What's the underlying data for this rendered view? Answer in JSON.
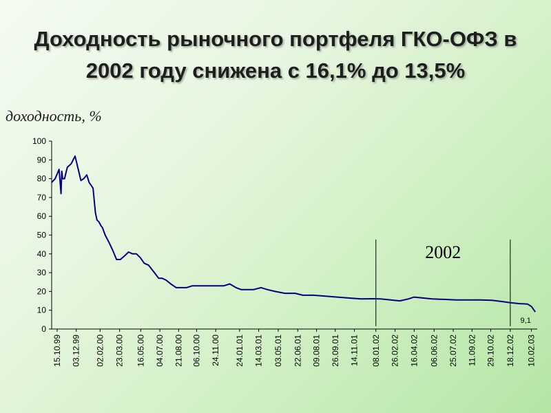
{
  "chart_data": {
    "type": "line",
    "title": "Доходность рыночного портфеля ГКО-ОФЗ в 2002 году снижена с 16,1% до 13,5%",
    "ylabel": "доходность, %",
    "xlabel": "",
    "ylim": [
      0,
      100
    ],
    "yticks": [
      "0",
      "10",
      "20",
      "30",
      "40",
      "50",
      "60",
      "70",
      "80",
      "90",
      "100"
    ],
    "xticks": [
      "15.10.99",
      "03.12.99",
      "02.02.00",
      "23.03.00",
      "16.05.00",
      "04.07.00",
      "21.08.00",
      "06.10.00",
      "24.11.00",
      "24.01.01",
      "14.03.01",
      "03.05.01",
      "22.06.01",
      "09.08.01",
      "26.09.01",
      "14.11.01",
      "08.01.02",
      "26.02.02",
      "16.04.02",
      "06.06.02",
      "25.07.02",
      "11.09.02",
      "29.10.02",
      "18.12.02",
      "10.02.03"
    ],
    "grid": false,
    "legend": "none",
    "line_color": "#000080",
    "series": [
      {
        "x": [
          "1999-10-01",
          "1999-10-10",
          "1999-10-20",
          "1999-10-25",
          "1999-10-27",
          "1999-10-29",
          "1999-11-03",
          "1999-11-10",
          "1999-11-20",
          "1999-11-30",
          "1999-12-08",
          "1999-12-15",
          "1999-12-22",
          "1999-12-30",
          "2000-01-05",
          "2000-01-15",
          "2000-01-21",
          "2000-01-25",
          "2000-01-30",
          "2000-02-04",
          "2000-02-08",
          "2000-02-15",
          "2000-02-25",
          "2000-03-05",
          "2000-03-15",
          "2000-03-25",
          "2000-04-05",
          "2000-04-15",
          "2000-04-25",
          "2000-05-05",
          "2000-05-15",
          "2000-05-25",
          "2000-06-05",
          "2000-06-20",
          "2000-07-01",
          "2000-07-10",
          "2000-07-20",
          "2000-08-01",
          "2000-08-15",
          "2000-08-25",
          "2000-09-10",
          "2000-09-25",
          "2000-10-05",
          "2000-10-20",
          "2000-11-10",
          "2000-11-25",
          "2000-12-15",
          "2000-12-30",
          "2001-01-15",
          "2001-01-28",
          "2001-02-15",
          "2001-03-01",
          "2001-03-20",
          "2001-04-05",
          "2001-04-25",
          "2001-05-20",
          "2001-06-15",
          "2001-07-05",
          "2001-08-01",
          "2001-09-01",
          "2001-10-01",
          "2001-11-01",
          "2001-12-01",
          "2002-01-01",
          "2002-01-20",
          "2002-02-15",
          "2002-03-10",
          "2002-04-01",
          "2002-04-16",
          "2002-05-10",
          "2002-06-01",
          "2002-07-01",
          "2002-08-01",
          "2002-09-01",
          "2002-10-01",
          "2002-11-01",
          "2002-12-01",
          "2002-12-18",
          "2003-01-10",
          "2003-01-31",
          "2003-02-10",
          "2003-02-20"
        ],
        "y": [
          78,
          80,
          85,
          72,
          84,
          80,
          80,
          86,
          88,
          92,
          85,
          79,
          80,
          82,
          78,
          75,
          62,
          58,
          57,
          55,
          54,
          50,
          46,
          42,
          37,
          37,
          39,
          41,
          40,
          40,
          38,
          35,
          34,
          30,
          27,
          27,
          26,
          24,
          22,
          22,
          22,
          23,
          23,
          23,
          23,
          23,
          23,
          24,
          22,
          21,
          21,
          21,
          22,
          21,
          20,
          19,
          19,
          18,
          18,
          17.5,
          17,
          16.5,
          16,
          16.1,
          16,
          15.5,
          15,
          16,
          17,
          16.5,
          16,
          15.8,
          15.5,
          15.5,
          15.5,
          15.3,
          14.5,
          14,
          13.5,
          13.3,
          12,
          9.1
        ]
      }
    ],
    "annotations": {
      "period_label": "2002",
      "period_start": "2002-01-08",
      "period_end": "2002-12-18",
      "end_value_label": "9,1"
    }
  }
}
